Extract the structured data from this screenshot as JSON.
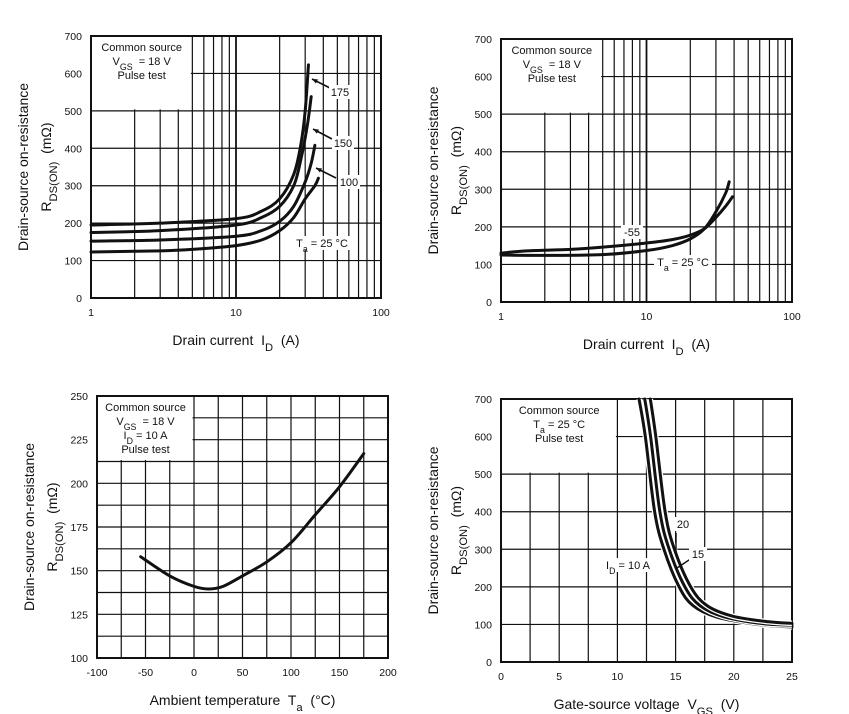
{
  "chart_data": [
    {
      "type": "line",
      "xscale": "log",
      "xlim": [
        1,
        100
      ],
      "ylim": [
        0,
        700
      ],
      "xticks": [
        "1",
        "10",
        "100"
      ],
      "yticks": [
        "0",
        "100",
        "200",
        "300",
        "400",
        "500",
        "600",
        "700"
      ],
      "grid": true,
      "ylabel": {
        "line1": "Drain-source on-resistance",
        "symbol": "R",
        "sub": "DS(ON)",
        "unit": "  (mΩ)"
      },
      "xlabel": {
        "text": "Drain current  ",
        "symbol": "I",
        "sub": "D",
        "unit": "  (A)"
      },
      "box": [
        [
          {
            "t": "Common source"
          }
        ],
        [
          {
            "t": "V"
          },
          {
            "t": "GS",
            "sub": true
          },
          {
            "t": "  = 18 V"
          }
        ],
        [
          {
            "t": "Pulse test"
          }
        ]
      ],
      "annotations": [
        [
          {
            "t": "175"
          }
        ],
        [
          {
            "t": "150"
          }
        ],
        [
          {
            "t": "100"
          }
        ],
        [
          {
            "t": "T"
          },
          {
            "t": "a",
            "sub": true
          },
          {
            "t": " = 25 °C"
          }
        ]
      ],
      "series": [
        {
          "label": "Ta = 25 °C",
          "x": [
            1,
            3,
            5,
            10,
            15,
            20,
            25,
            30,
            35,
            37
          ],
          "y": [
            123,
            126,
            130,
            140,
            155,
            180,
            215,
            265,
            300,
            320
          ]
        },
        {
          "label": "100",
          "x": [
            1,
            3,
            10,
            15,
            20,
            25,
            30,
            33,
            35
          ],
          "y": [
            152,
            155,
            165,
            180,
            205,
            245,
            310,
            360,
            408
          ]
        },
        {
          "label": "150",
          "x": [
            1,
            3,
            10,
            15,
            20,
            25,
            28,
            31,
            33
          ],
          "y": [
            175,
            180,
            195,
            215,
            245,
            300,
            370,
            460,
            538
          ]
        },
        {
          "label": "175",
          "x": [
            1,
            3,
            10,
            15,
            20,
            25,
            28,
            30,
            31.6
          ],
          "y": [
            195,
            200,
            212,
            232,
            265,
            330,
            410,
            500,
            623
          ]
        }
      ]
    },
    {
      "type": "line",
      "xscale": "log",
      "xlim": [
        1,
        100
      ],
      "ylim": [
        0,
        700
      ],
      "xticks": [
        "1",
        "10",
        "100"
      ],
      "yticks": [
        "0",
        "100",
        "200",
        "300",
        "400",
        "500",
        "600",
        "700"
      ],
      "grid": true,
      "ylabel": {
        "line1": "Drain-source on-resistance",
        "symbol": "R",
        "sub": "DS(ON)",
        "unit": "  (mΩ)"
      },
      "xlabel": {
        "text": "Drain current  ",
        "symbol": "I",
        "sub": "D",
        "unit": "  (A)"
      },
      "box": [
        [
          {
            "t": "Common source"
          }
        ],
        [
          {
            "t": "V"
          },
          {
            "t": "GS",
            "sub": true
          },
          {
            "t": "  = 18 V"
          }
        ],
        [
          {
            "t": "Pulse test"
          }
        ]
      ],
      "annotations": [
        [
          {
            "t": "-55"
          }
        ],
        [
          {
            "t": "T"
          },
          {
            "t": "a",
            "sub": true
          },
          {
            "t": " = 25 °C"
          }
        ]
      ],
      "series": [
        {
          "label": "-55",
          "x": [
            1,
            1.5,
            3,
            5,
            10,
            15,
            20,
            25,
            30,
            35,
            39
          ],
          "y": [
            130,
            136,
            140,
            146,
            157,
            166,
            178,
            195,
            225,
            255,
            280
          ]
        },
        {
          "label": "Ta = 25 °C",
          "x": [
            1,
            2,
            5,
            10,
            15,
            20,
            25,
            30,
            35,
            37
          ],
          "y": [
            125,
            124,
            126,
            137,
            150,
            168,
            195,
            240,
            290,
            320
          ]
        }
      ]
    },
    {
      "type": "line",
      "xscale": "linear",
      "xlim": [
        -100,
        200
      ],
      "ylim": [
        100,
        250
      ],
      "xticks": [
        "-100",
        "-50",
        "0",
        "50",
        "100",
        "150",
        "200"
      ],
      "yticks": [
        "100",
        "125",
        "150",
        "175",
        "200",
        "225",
        "250"
      ],
      "grid": true,
      "ylabel": {
        "line1": "Drain-source on-resistance",
        "symbol": "R",
        "sub": "DS(ON)",
        "unit": "  (mΩ)"
      },
      "xlabel": {
        "text": "Ambient temperature  ",
        "symbol": "T",
        "sub": "a",
        "unit": "  (°C)"
      },
      "box": [
        [
          {
            "t": "Common source"
          }
        ],
        [
          {
            "t": "V"
          },
          {
            "t": "GS",
            "sub": true
          },
          {
            "t": "  = 18 V"
          }
        ],
        [
          {
            "t": "I"
          },
          {
            "t": "D",
            "sub": true
          },
          {
            "t": " = 10 A"
          }
        ],
        [
          {
            "t": "Pulse test"
          }
        ]
      ],
      "annotations": [],
      "series": [
        {
          "x": [
            -55,
            -25,
            0,
            15,
            30,
            50,
            75,
            100,
            125,
            150,
            175
          ],
          "y": [
            158,
            147,
            141,
            139.5,
            141,
            147,
            155,
            166,
            182,
            198,
            217
          ]
        }
      ]
    },
    {
      "type": "line",
      "xscale": "linear",
      "xlim": [
        0,
        25
      ],
      "ylim": [
        0,
        700
      ],
      "xticks": [
        "0",
        "5",
        "10",
        "15",
        "20",
        "25"
      ],
      "yticks": [
        "0",
        "100",
        "200",
        "300",
        "400",
        "500",
        "600",
        "700"
      ],
      "grid": true,
      "ylabel": {
        "line1": "Drain-source on-resistance",
        "symbol": "R",
        "sub": "DS(ON)",
        "unit": "  (mΩ)"
      },
      "xlabel": {
        "text": "Gate-source voltage  ",
        "symbol": "V",
        "sub": "GS",
        "unit": "  (V)"
      },
      "box": [
        [
          {
            "t": "Common source"
          }
        ],
        [
          {
            "t": "T"
          },
          {
            "t": "a",
            "sub": true
          },
          {
            "t": " = 25 °C"
          }
        ],
        [
          {
            "t": "Pulse test"
          }
        ]
      ],
      "annotations": [
        [
          {
            "t": "20"
          }
        ],
        [
          {
            "t": "15"
          }
        ],
        [
          {
            "t": "I"
          },
          {
            "t": "D",
            "sub": true
          },
          {
            "t": " = 10 A"
          }
        ]
      ],
      "series": [
        {
          "label": "ID = 10 A",
          "x": [
            11.86,
            12.4,
            13.2,
            14,
            15.3,
            16.5,
            18.5,
            22,
            25
          ],
          "y": [
            700,
            600,
            400,
            300,
            200,
            150,
            120,
            100,
            93
          ]
        },
        {
          "label": "15",
          "x": [
            12.35,
            12.85,
            13.65,
            14.45,
            15.8,
            17.1,
            19.2,
            22.5,
            25
          ],
          "y": [
            700,
            600,
            400,
            300,
            200,
            150,
            120,
            102,
            98
          ]
        },
        {
          "label": "20",
          "x": [
            12.83,
            13.3,
            14.1,
            14.9,
            16.3,
            17.7,
            19.9,
            23,
            25
          ],
          "y": [
            700,
            600,
            400,
            300,
            200,
            150,
            122,
            107,
            103
          ]
        }
      ]
    }
  ]
}
